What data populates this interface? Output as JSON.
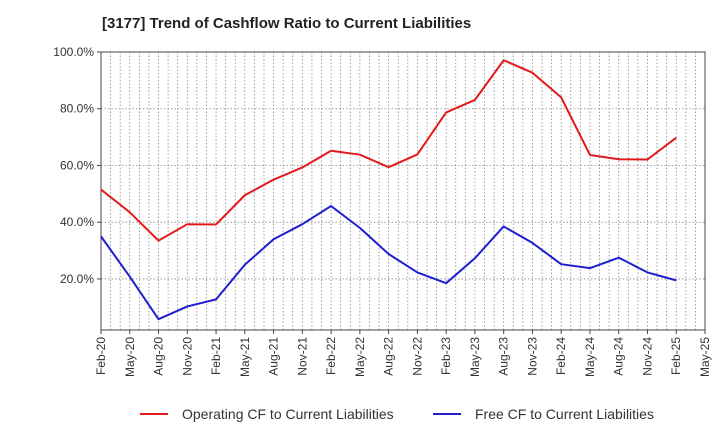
{
  "chart_data": {
    "type": "line",
    "title": "[3177]  Trend of Cashflow Ratio to Current Liabilities",
    "xlabel": "",
    "ylabel": "",
    "ylim": [
      2,
      100
    ],
    "ytick_values": [
      20,
      40,
      60,
      80,
      100
    ],
    "ytick_labels": [
      "20.0%",
      "40.0%",
      "60.0%",
      "80.0%",
      "100.0%"
    ],
    "x": [
      "Feb-20",
      "May-20",
      "Aug-20",
      "Nov-20",
      "Feb-21",
      "May-21",
      "Aug-21",
      "Nov-21",
      "Feb-22",
      "May-22",
      "Aug-22",
      "Nov-22",
      "Feb-23",
      "May-23",
      "Aug-23",
      "Nov-23",
      "Feb-24",
      "May-24",
      "Aug-24",
      "Nov-24",
      "Feb-25",
      "May-25"
    ],
    "grid": true,
    "legend_position": "bottom",
    "series": [
      {
        "name": "Operating CF to Current Liabilities",
        "color": "#e31a1c",
        "values": [
          51.5,
          43.5,
          33.5,
          39.3,
          39.2,
          49.5,
          55.0,
          59.3,
          65.2,
          63.8,
          59.4,
          63.9,
          78.7,
          83.1,
          97.1,
          92.7,
          84.0,
          63.7,
          62.2,
          62.1,
          69.8,
          null
        ]
      },
      {
        "name": "Free CF to Current Liabilities",
        "color": "#1f1fd0",
        "values": [
          35.0,
          20.8,
          5.8,
          10.3,
          12.8,
          25.0,
          34.0,
          39.3,
          45.7,
          38.0,
          28.8,
          22.3,
          18.5,
          27.3,
          38.5,
          32.7,
          25.2,
          23.8,
          27.5,
          22.3,
          19.5,
          null
        ]
      }
    ]
  }
}
